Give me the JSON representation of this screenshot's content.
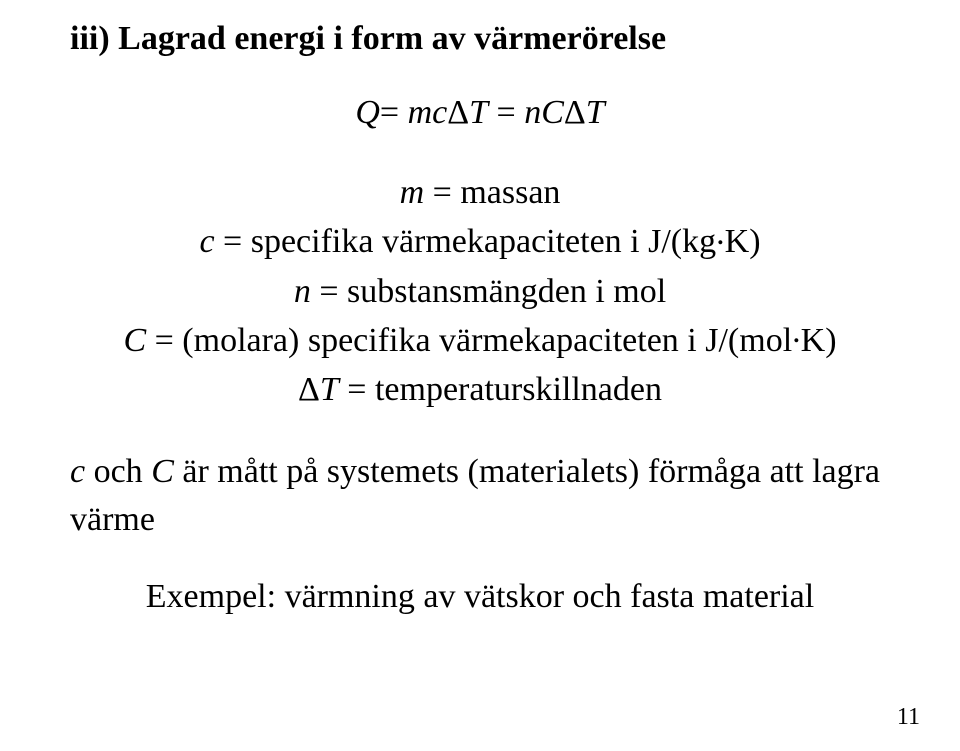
{
  "heading": "iii) Lagrad energi i form av värmerörelse",
  "equation": {
    "Q": "Q",
    "eq1": "=",
    "m": "m",
    "c": "c",
    "d1": "Δ",
    "T1": "T",
    "eq2": " = ",
    "n": "n",
    "C": "C",
    "d2": "Δ",
    "T2": "T"
  },
  "defs": {
    "l1_var": "m",
    "l1_rest": " = massan",
    "l2_var": "c",
    "l2_rest_a": " = specifika värmekapaciteten i J/(kg",
    "l2_dot": ".",
    "l2_rest_b": "K)",
    "l3_var": "n",
    "l3_rest": " = substansmängden i mol",
    "l4_var": "C",
    "l4_rest_a": " = (molara) specifika värmekapaciteten i J/(mol",
    "l4_dot": ".",
    "l4_rest_b": "K)",
    "l5_d": "Δ",
    "l5_var": "T",
    "l5_rest": " = temperaturskillnaden"
  },
  "sentence": {
    "v1": "c",
    "t1": " och ",
    "v2": "C",
    "t2": " är mått på systemets (materialets) förmåga att lagra värme"
  },
  "example": "Exempel: värmning av vätskor och fasta material",
  "page_number": "11"
}
